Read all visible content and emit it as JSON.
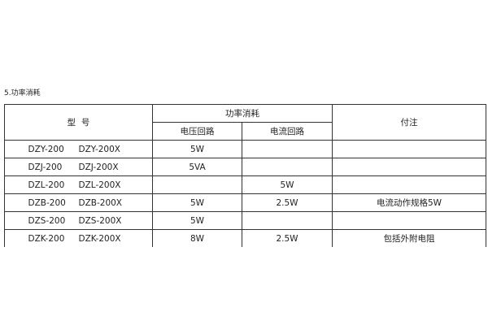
{
  "section_title": "5.功率消耗",
  "table": {
    "headers": {
      "model": "型  号",
      "power": "功率消耗",
      "voltage_circuit": "电压回路",
      "current_circuit": "电流回路",
      "remarks": "付注"
    },
    "rows": [
      {
        "model_a": "DZY-200",
        "model_b": "DZY-200X",
        "voltage": "5W",
        "current": "",
        "remark": ""
      },
      {
        "model_a": "DZJ-200",
        "model_b": "DZJ-200X",
        "voltage": "5VA",
        "current": "",
        "remark": ""
      },
      {
        "model_a": "DZL-200",
        "model_b": "DZL-200X",
        "voltage": "",
        "current": "5W",
        "remark": ""
      },
      {
        "model_a": "DZB-200",
        "model_b": "DZB-200X",
        "voltage": "5W",
        "current": "2.5W",
        "remark": "电流动作规格5W"
      },
      {
        "model_a": "DZS-200",
        "model_b": "DZS-200X",
        "voltage": "5W",
        "current": "",
        "remark": ""
      },
      {
        "model_a": "DZK-200",
        "model_b": "DZK-200X",
        "voltage": "8W",
        "current": "2.5W",
        "remark": "包括外附电阻"
      }
    ]
  }
}
